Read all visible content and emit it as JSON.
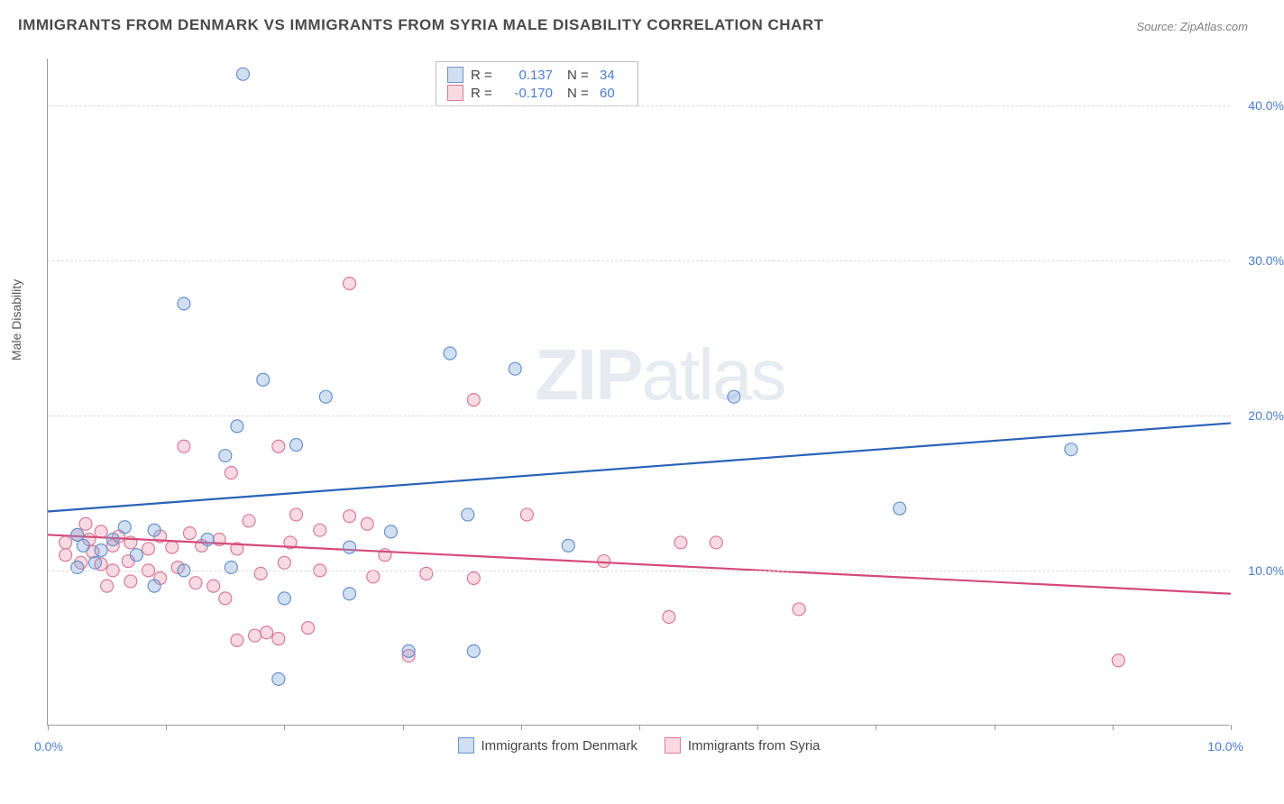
{
  "title": "IMMIGRANTS FROM DENMARK VS IMMIGRANTS FROM SYRIA MALE DISABILITY CORRELATION CHART",
  "source_label": "Source:",
  "source_value": "ZipAtlas.com",
  "ylabel": "Male Disability",
  "watermark_zip": "ZIP",
  "watermark_atlas": "atlas",
  "chart": {
    "type": "scatter-correlation",
    "xlim": [
      0,
      10
    ],
    "ylim": [
      0,
      43
    ],
    "x_ticks": [
      0,
      1,
      2,
      3,
      4,
      5,
      6,
      7,
      8,
      9,
      10
    ],
    "x_tick_labels_shown": {
      "0": "0.0%",
      "10": "10.0%"
    },
    "y_gridlines": [
      10,
      20,
      30,
      40
    ],
    "y_tick_labels": {
      "10": "10.0%",
      "20": "20.0%",
      "30": "30.0%",
      "40": "40.0%"
    },
    "grid_color": "#d8d8d8",
    "axis_color": "#9a9a9a",
    "background_color": "#ffffff",
    "tick_label_color": "#4a7bd0",
    "series": {
      "denmark": {
        "label": "Immigrants from Denmark",
        "fill_color": "rgba(122,162,219,0.35)",
        "stroke_color": "#6a93c9",
        "trend_color": "#2a62b8",
        "marker_radius": 7,
        "stroke_width": 1.2,
        "trend_line_width": 2.2,
        "r_label": "R =",
        "r_value": "0.137",
        "n_label": "N =",
        "n_value": "34",
        "points": [
          [
            1.65,
            42.0
          ],
          [
            1.15,
            27.2
          ],
          [
            1.82,
            22.3
          ],
          [
            1.6,
            19.3
          ],
          [
            2.35,
            21.2
          ],
          [
            2.1,
            18.1
          ],
          [
            1.5,
            17.4
          ],
          [
            3.4,
            24.0
          ],
          [
            3.95,
            23.0
          ],
          [
            5.8,
            21.2
          ],
          [
            8.65,
            17.8
          ],
          [
            7.2,
            14.0
          ],
          [
            2.55,
            11.5
          ],
          [
            1.35,
            12.0
          ],
          [
            0.25,
            12.3
          ],
          [
            0.45,
            11.3
          ],
          [
            0.65,
            12.8
          ],
          [
            0.75,
            11.0
          ],
          [
            0.9,
            12.6
          ],
          [
            0.9,
            9.0
          ],
          [
            1.15,
            10.0
          ],
          [
            1.55,
            10.2
          ],
          [
            1.95,
            3.0
          ],
          [
            2.0,
            8.2
          ],
          [
            2.55,
            8.5
          ],
          [
            2.9,
            12.5
          ],
          [
            3.05,
            4.8
          ],
          [
            3.6,
            4.8
          ],
          [
            3.55,
            13.6
          ],
          [
            4.4,
            11.6
          ],
          [
            0.4,
            10.5
          ],
          [
            0.25,
            10.2
          ],
          [
            0.55,
            12.0
          ],
          [
            0.3,
            11.6
          ]
        ],
        "trend_line": {
          "y_at_xmin": 13.8,
          "y_at_xmax": 19.5
        }
      },
      "syria": {
        "label": "Immigrants from Syria",
        "fill_color": "rgba(232,140,165,0.32)",
        "stroke_color": "#d97a9a",
        "trend_color": "#d54a78",
        "marker_radius": 7,
        "stroke_width": 1.2,
        "trend_line_width": 2.2,
        "r_label": "R =",
        "r_value": "-0.170",
        "n_label": "N =",
        "n_value": "60",
        "points": [
          [
            2.55,
            28.5
          ],
          [
            3.6,
            21.0
          ],
          [
            1.15,
            18.0
          ],
          [
            1.55,
            16.3
          ],
          [
            1.95,
            18.0
          ],
          [
            2.55,
            13.5
          ],
          [
            2.7,
            13.0
          ],
          [
            2.1,
            13.6
          ],
          [
            0.15,
            11.8
          ],
          [
            0.15,
            11.0
          ],
          [
            0.25,
            12.3
          ],
          [
            0.28,
            10.5
          ],
          [
            0.35,
            12.0
          ],
          [
            0.38,
            11.2
          ],
          [
            0.45,
            10.4
          ],
          [
            0.45,
            12.5
          ],
          [
            0.55,
            11.6
          ],
          [
            0.55,
            10.0
          ],
          [
            0.6,
            12.2
          ],
          [
            0.68,
            10.6
          ],
          [
            0.7,
            11.8
          ],
          [
            0.7,
            9.3
          ],
          [
            0.85,
            11.4
          ],
          [
            0.85,
            10.0
          ],
          [
            0.95,
            12.2
          ],
          [
            0.95,
            9.5
          ],
          [
            1.05,
            11.5
          ],
          [
            1.1,
            10.2
          ],
          [
            1.2,
            12.4
          ],
          [
            1.25,
            9.2
          ],
          [
            1.3,
            11.6
          ],
          [
            1.4,
            9.0
          ],
          [
            1.45,
            12.0
          ],
          [
            1.5,
            8.2
          ],
          [
            1.6,
            5.5
          ],
          [
            1.6,
            11.4
          ],
          [
            1.7,
            13.2
          ],
          [
            1.75,
            5.8
          ],
          [
            1.8,
            9.8
          ],
          [
            1.85,
            6.0
          ],
          [
            1.95,
            5.6
          ],
          [
            2.0,
            10.5
          ],
          [
            2.05,
            11.8
          ],
          [
            2.2,
            6.3
          ],
          [
            2.3,
            10.0
          ],
          [
            2.3,
            12.6
          ],
          [
            2.75,
            9.6
          ],
          [
            2.85,
            11.0
          ],
          [
            3.05,
            4.5
          ],
          [
            3.2,
            9.8
          ],
          [
            3.6,
            9.5
          ],
          [
            4.05,
            13.6
          ],
          [
            4.7,
            10.6
          ],
          [
            5.25,
            7.0
          ],
          [
            5.35,
            11.8
          ],
          [
            5.65,
            11.8
          ],
          [
            6.35,
            7.5
          ],
          [
            9.05,
            4.2
          ],
          [
            0.32,
            13.0
          ],
          [
            0.5,
            9.0
          ]
        ],
        "trend_line": {
          "y_at_xmin": 12.3,
          "y_at_xmax": 8.5
        }
      }
    }
  }
}
